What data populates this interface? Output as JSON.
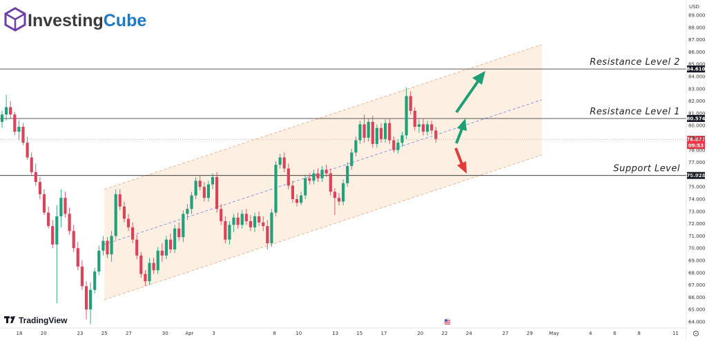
{
  "brand": {
    "name_part1": "Investing",
    "name_part2": "Cube"
  },
  "watermark": {
    "text": "TradingView"
  },
  "currency": "USD",
  "colors": {
    "up": "#22a07a",
    "down": "#d8455a",
    "channel_fill": "#fdf0e3",
    "channel_border": "#e9a67e",
    "midline": "#6f7fdc",
    "arrow_up": "#1e9e72",
    "arrow_down": "#e23b3b",
    "brand_purple": "#6c3fa8",
    "brand_blue": "#1f79c4"
  },
  "chart_data": {
    "type": "candlestick",
    "y_ticks": [
      "89.000",
      "88.000",
      "87.000",
      "86.000",
      "85.000",
      "84.000",
      "83.000",
      "82.000",
      "81.000",
      "80.000",
      "79.000",
      "78.000",
      "77.000",
      "76.000",
      "75.000",
      "74.000",
      "73.000",
      "72.000",
      "71.000",
      "70.000",
      "69.000",
      "68.000",
      "67.000",
      "66.000",
      "65.000",
      "64.000"
    ],
    "x_ticks": [
      {
        "label": "18",
        "day": 0
      },
      {
        "label": "20",
        "day": 2
      },
      {
        "label": "23",
        "day": 5
      },
      {
        "label": "25",
        "day": 7
      },
      {
        "label": "27",
        "day": 9
      },
      {
        "label": "30",
        "day": 12
      },
      {
        "label": "Apr",
        "day": 14
      },
      {
        "label": "3",
        "day": 16
      },
      {
        "label": "8",
        "day": 21
      },
      {
        "label": "10",
        "day": 23
      },
      {
        "label": "13",
        "day": 26
      },
      {
        "label": "15",
        "day": 28
      },
      {
        "label": "17",
        "day": 30
      },
      {
        "label": "20",
        "day": 33
      },
      {
        "label": "22",
        "day": 35
      },
      {
        "label": "24",
        "day": 37
      },
      {
        "label": "27",
        "day": 40
      },
      {
        "label": "29",
        "day": 42
      },
      {
        "label": "May",
        "day": 44
      },
      {
        "label": "4",
        "day": 47
      },
      {
        "label": "6",
        "day": 49
      },
      {
        "label": "8",
        "day": 51
      },
      {
        "label": "11",
        "day": 54
      }
    ],
    "levels": [
      {
        "name": "Resistance Level 2",
        "value": 84.61,
        "badge": "84.610"
      },
      {
        "name": "Resistance Level 1",
        "value": 80.574,
        "badge": "80.574"
      },
      {
        "name": "Support Level",
        "value": 75.928,
        "badge": "75.928"
      }
    ],
    "current_price": {
      "value": 78.877,
      "label": "78.877",
      "countdown": "09:53"
    },
    "channel": {
      "upper": [
        [
          7,
          74.8
        ],
        [
          43,
          86.6
        ]
      ],
      "lower": [
        [
          7,
          65.8
        ],
        [
          43,
          77.6
        ]
      ],
      "mid": [
        [
          7,
          70.3
        ],
        [
          43,
          82.1
        ]
      ]
    },
    "candles": [
      [
        80.3,
        81.2,
        79.8,
        80.9
      ],
      [
        80.9,
        82.5,
        80.4,
        81.5
      ],
      [
        81.5,
        82.0,
        80.6,
        80.9
      ],
      [
        80.9,
        81.1,
        79.2,
        79.5
      ],
      [
        79.5,
        80.4,
        78.8,
        79.9
      ],
      [
        79.9,
        80.2,
        78.4,
        78.6
      ],
      [
        78.6,
        79.1,
        77.2,
        77.4
      ],
      [
        77.4,
        77.8,
        76.0,
        76.2
      ],
      [
        76.2,
        76.9,
        75.1,
        75.4
      ],
      [
        75.4,
        75.8,
        74.0,
        74.4
      ],
      [
        74.4,
        74.8,
        72.7,
        72.9
      ],
      [
        72.9,
        73.4,
        71.6,
        71.8
      ],
      [
        71.8,
        72.3,
        70.0,
        70.3
      ],
      [
        70.3,
        73.5,
        65.5,
        72.6
      ],
      [
        72.6,
        74.8,
        71.7,
        74.1
      ],
      [
        74.1,
        74.6,
        72.5,
        72.8
      ],
      [
        72.8,
        73.3,
        71.1,
        71.4
      ],
      [
        71.4,
        71.9,
        69.7,
        70.0
      ],
      [
        70.0,
        70.5,
        68.2,
        68.5
      ],
      [
        68.5,
        69.0,
        66.6,
        66.9
      ],
      [
        66.9,
        67.3,
        64.2,
        65.0
      ],
      [
        65.0,
        67.2,
        63.8,
        66.6
      ],
      [
        66.6,
        68.4,
        66.3,
        68.1
      ],
      [
        68.1,
        70.2,
        67.8,
        69.8
      ],
      [
        69.8,
        71.0,
        69.4,
        70.6
      ],
      [
        70.6,
        70.9,
        69.2,
        69.5
      ],
      [
        69.5,
        71.4,
        68.9,
        71.0
      ],
      [
        71.0,
        74.8,
        70.7,
        74.4
      ],
      [
        74.4,
        74.8,
        73.1,
        73.4
      ],
      [
        73.4,
        73.8,
        72.1,
        72.4
      ],
      [
        72.4,
        72.8,
        71.4,
        71.7
      ],
      [
        71.7,
        72.1,
        70.4,
        70.7
      ],
      [
        70.7,
        71.1,
        69.1,
        69.4
      ],
      [
        69.4,
        69.7,
        67.6,
        67.9
      ],
      [
        67.9,
        68.2,
        66.9,
        67.3
      ],
      [
        67.3,
        69.2,
        67.0,
        68.8
      ],
      [
        68.8,
        69.2,
        67.9,
        68.2
      ],
      [
        68.2,
        70.1,
        67.9,
        69.8
      ],
      [
        69.8,
        70.4,
        68.9,
        69.4
      ],
      [
        69.4,
        71.0,
        69.1,
        70.7
      ],
      [
        70.7,
        71.2,
        69.6,
        69.9
      ],
      [
        69.9,
        71.9,
        69.6,
        71.6
      ],
      [
        71.6,
        72.1,
        70.6,
        70.9
      ],
      [
        70.9,
        73.1,
        70.5,
        72.8
      ],
      [
        72.8,
        73.6,
        72.3,
        73.2
      ],
      [
        73.2,
        74.6,
        72.8,
        74.3
      ],
      [
        74.3,
        75.8,
        74.0,
        75.5
      ],
      [
        75.5,
        75.9,
        74.7,
        75.0
      ],
      [
        75.0,
        75.4,
        73.8,
        74.1
      ],
      [
        74.1,
        75.5,
        73.8,
        75.2
      ],
      [
        75.2,
        76.1,
        74.8,
        75.8
      ],
      [
        75.8,
        76.2,
        72.9,
        73.2
      ],
      [
        73.2,
        73.6,
        71.9,
        72.2
      ],
      [
        72.2,
        72.6,
        70.4,
        70.7
      ],
      [
        70.7,
        72.2,
        70.3,
        71.9
      ],
      [
        71.9,
        72.8,
        71.3,
        72.5
      ],
      [
        72.5,
        72.9,
        71.6,
        71.9
      ],
      [
        71.9,
        73.1,
        71.6,
        72.8
      ],
      [
        72.8,
        73.2,
        71.9,
        72.2
      ],
      [
        72.2,
        72.7,
        71.4,
        71.7
      ],
      [
        71.7,
        72.9,
        71.3,
        72.6
      ],
      [
        72.6,
        73.0,
        71.8,
        72.1
      ],
      [
        72.1,
        72.6,
        71.4,
        71.8
      ],
      [
        71.8,
        72.3,
        69.9,
        70.4
      ],
      [
        70.4,
        73.2,
        70.1,
        72.9
      ],
      [
        72.9,
        77.1,
        72.6,
        76.8
      ],
      [
        76.8,
        77.7,
        76.5,
        77.4
      ],
      [
        77.4,
        77.8,
        76.2,
        76.5
      ],
      [
        76.5,
        76.9,
        74.8,
        75.1
      ],
      [
        75.1,
        75.5,
        73.7,
        74.0
      ],
      [
        74.0,
        74.4,
        73.4,
        73.7
      ],
      [
        73.7,
        74.6,
        73.5,
        74.3
      ],
      [
        74.3,
        76.0,
        74.0,
        75.7
      ],
      [
        75.7,
        76.1,
        75.2,
        75.5
      ],
      [
        75.5,
        76.4,
        75.2,
        76.1
      ],
      [
        76.1,
        76.5,
        75.4,
        75.7
      ],
      [
        75.7,
        76.7,
        75.4,
        76.4
      ],
      [
        76.4,
        76.8,
        75.8,
        76.1
      ],
      [
        76.1,
        76.5,
        74.3,
        74.6
      ],
      [
        74.6,
        74.9,
        72.7,
        74.1
      ],
      [
        74.1,
        74.5,
        73.5,
        73.8
      ],
      [
        73.8,
        75.6,
        73.5,
        75.3
      ],
      [
        75.3,
        77.0,
        75.0,
        76.7
      ],
      [
        76.7,
        78.1,
        76.4,
        77.8
      ],
      [
        77.8,
        79.1,
        77.5,
        78.8
      ],
      [
        78.8,
        80.4,
        78.5,
        80.1
      ],
      [
        80.1,
        80.9,
        78.6,
        79.0
      ],
      [
        79.0,
        80.6,
        78.7,
        80.3
      ],
      [
        80.3,
        80.8,
        78.2,
        78.5
      ],
      [
        78.5,
        80.1,
        78.2,
        79.8
      ],
      [
        79.8,
        80.2,
        78.6,
        78.9
      ],
      [
        78.9,
        80.5,
        78.6,
        80.2
      ],
      [
        80.2,
        80.6,
        78.5,
        78.8
      ],
      [
        78.8,
        79.1,
        77.8,
        78.0
      ],
      [
        78.0,
        78.9,
        77.7,
        78.6
      ],
      [
        78.6,
        79.5,
        78.3,
        79.2
      ],
      [
        79.2,
        83.1,
        78.9,
        82.4
      ],
      [
        82.4,
        82.8,
        80.9,
        81.2
      ],
      [
        81.2,
        81.5,
        79.6,
        79.9
      ],
      [
        79.9,
        80.5,
        79.4,
        80.1
      ],
      [
        80.1,
        80.6,
        79.2,
        79.5
      ],
      [
        79.5,
        80.4,
        79.2,
        80.1
      ],
      [
        80.1,
        80.4,
        79.3,
        79.6
      ],
      [
        79.6,
        79.9,
        78.6,
        78.9
      ]
    ]
  }
}
